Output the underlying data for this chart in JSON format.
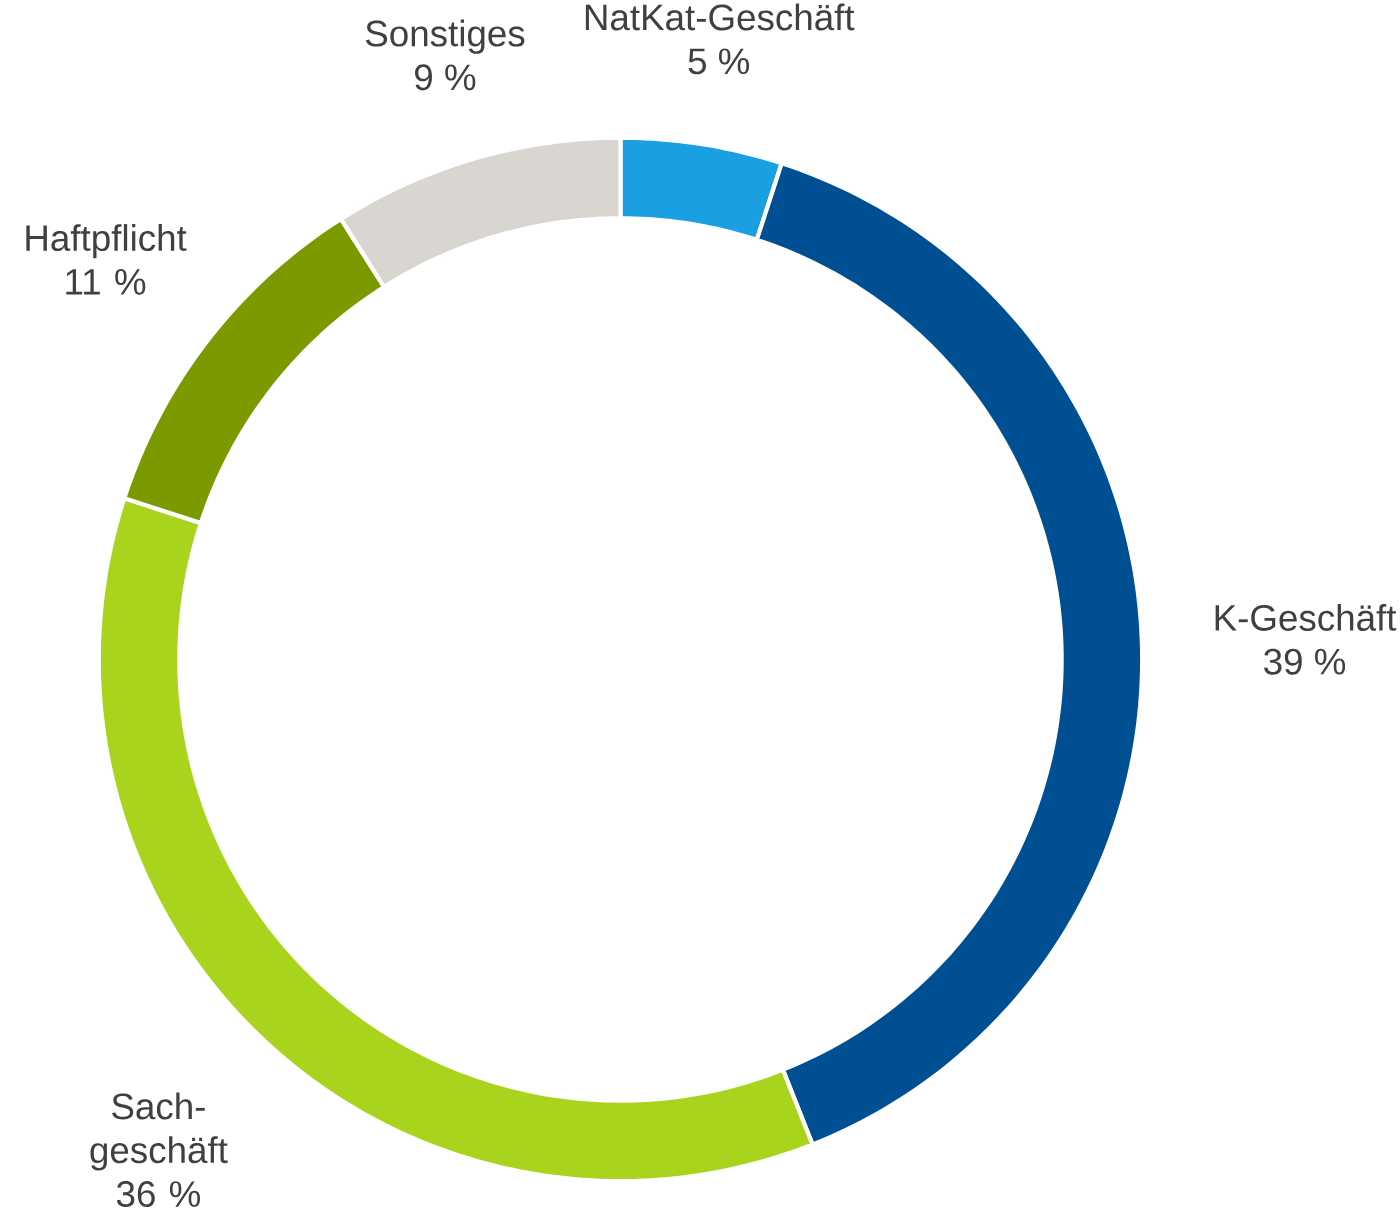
{
  "chart_data": {
    "type": "donut",
    "categories": [
      "NatKat-Geschäft",
      "K-Geschäft",
      "Sach-geschäft",
      "Haftpflicht",
      "Sonstiges"
    ],
    "values": [
      5,
      39,
      36,
      11,
      9
    ],
    "value_labels": [
      "5 %",
      "39 %",
      "36 %",
      "11 %",
      "9 %"
    ],
    "colors": [
      "#1a9fe0",
      "#004f93",
      "#a8d41e",
      "#7b9a00",
      "#d9d6d1"
    ]
  }
}
